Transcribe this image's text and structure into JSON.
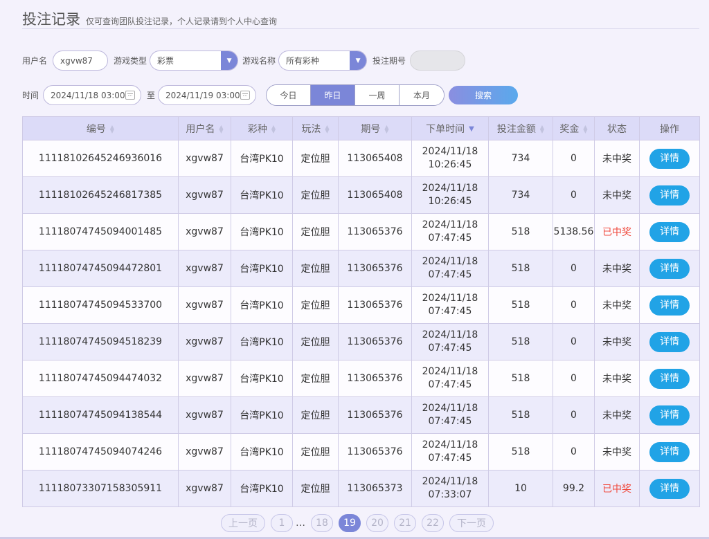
{
  "header": {
    "title": "投注记录",
    "subtitle": "仅可查询团队投注记录，个人记录请到个人中心查询"
  },
  "filters": {
    "username_label": "用户名",
    "username_value": "xgvw87",
    "game_type_label": "游戏类型",
    "game_type_value": "彩票",
    "game_name_label": "游戏名称",
    "game_name_value": "所有彩种",
    "period_label": "投注期号",
    "period_value": "",
    "time_label": "时间",
    "date_from": "2024/11/18 03:00",
    "to_label": "至",
    "date_to": "2024/11/19 03:00",
    "quick_ranges": [
      "今日",
      "昨日",
      "一周",
      "本月"
    ],
    "active_range": "昨日",
    "search_label": "搜索"
  },
  "table": {
    "columns": [
      "编号",
      "用户名",
      "彩种",
      "玩法",
      "期号",
      "下单时间",
      "投注金额",
      "奖金",
      "状态",
      "操作"
    ],
    "detail_label": "详情",
    "rows": [
      {
        "id": "11118102645246936016",
        "user": "xgvw87",
        "lottery": "台湾PK10",
        "play": "定位胆",
        "period": "113065408",
        "date": "2024/11/18",
        "time": "10:26:45",
        "amount": "734",
        "prize": "0",
        "status": "未中奖",
        "won": false
      },
      {
        "id": "11118102645246817385",
        "user": "xgvw87",
        "lottery": "台湾PK10",
        "play": "定位胆",
        "period": "113065408",
        "date": "2024/11/18",
        "time": "10:26:45",
        "amount": "734",
        "prize": "0",
        "status": "未中奖",
        "won": false
      },
      {
        "id": "11118074745094001485",
        "user": "xgvw87",
        "lottery": "台湾PK10",
        "play": "定位胆",
        "period": "113065376",
        "date": "2024/11/18",
        "time": "07:47:45",
        "amount": "518",
        "prize": "5138.56",
        "status": "已中奖",
        "won": true
      },
      {
        "id": "11118074745094472801",
        "user": "xgvw87",
        "lottery": "台湾PK10",
        "play": "定位胆",
        "period": "113065376",
        "date": "2024/11/18",
        "time": "07:47:45",
        "amount": "518",
        "prize": "0",
        "status": "未中奖",
        "won": false
      },
      {
        "id": "11118074745094533700",
        "user": "xgvw87",
        "lottery": "台湾PK10",
        "play": "定位胆",
        "period": "113065376",
        "date": "2024/11/18",
        "time": "07:47:45",
        "amount": "518",
        "prize": "0",
        "status": "未中奖",
        "won": false
      },
      {
        "id": "11118074745094518239",
        "user": "xgvw87",
        "lottery": "台湾PK10",
        "play": "定位胆",
        "period": "113065376",
        "date": "2024/11/18",
        "time": "07:47:45",
        "amount": "518",
        "prize": "0",
        "status": "未中奖",
        "won": false
      },
      {
        "id": "11118074745094474032",
        "user": "xgvw87",
        "lottery": "台湾PK10",
        "play": "定位胆",
        "period": "113065376",
        "date": "2024/11/18",
        "time": "07:47:45",
        "amount": "518",
        "prize": "0",
        "status": "未中奖",
        "won": false
      },
      {
        "id": "11118074745094138544",
        "user": "xgvw87",
        "lottery": "台湾PK10",
        "play": "定位胆",
        "period": "113065376",
        "date": "2024/11/18",
        "time": "07:47:45",
        "amount": "518",
        "prize": "0",
        "status": "未中奖",
        "won": false
      },
      {
        "id": "11118074745094074246",
        "user": "xgvw87",
        "lottery": "台湾PK10",
        "play": "定位胆",
        "period": "113065376",
        "date": "2024/11/18",
        "time": "07:47:45",
        "amount": "518",
        "prize": "0",
        "status": "未中奖",
        "won": false
      },
      {
        "id": "11118073307158305911",
        "user": "xgvw87",
        "lottery": "台湾PK10",
        "play": "定位胆",
        "period": "113065373",
        "date": "2024/11/18",
        "time": "07:33:07",
        "amount": "10",
        "prize": "99.2",
        "status": "已中奖",
        "won": true
      }
    ]
  },
  "pagination": {
    "prev_label": "上一页",
    "next_label": "下一页",
    "first_page": "1",
    "ellipsis": "…",
    "pages": [
      "18",
      "19",
      "20",
      "21",
      "22"
    ],
    "current": "19"
  },
  "colors": {
    "accent": "#7b86d8",
    "detail_button": "#21a3e6",
    "won_status": "#f0493c",
    "header_bg": "#dcdbf8"
  }
}
